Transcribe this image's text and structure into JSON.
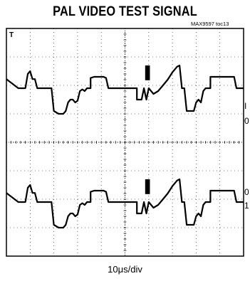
{
  "title": "PAL VIDEO TEST SIGNAL",
  "figure_id": "MAX9597 toc13",
  "trigger_marker": "T",
  "x_scale": "10μs/div",
  "side_labels": {
    "top_1": "I",
    "top_2": "0",
    "bottom_1": "0",
    "bottom_2": "1"
  },
  "chart_data": {
    "type": "line",
    "title": "PAL VIDEO TEST SIGNAL",
    "xlabel": "10μs/div",
    "ylabel": "",
    "grid": true,
    "x_divisions": 10,
    "y_divisions": 8,
    "time_per_div_us": 10,
    "series": [
      {
        "channel": 1,
        "points": [
          [
            0.0,
            -0.04
          ],
          [
            0.05,
            -0.2
          ],
          [
            0.08,
            -0.2
          ],
          [
            0.09,
            0.05
          ],
          [
            0.1,
            0.1
          ],
          [
            0.11,
            -0.04
          ],
          [
            0.12,
            -0.04
          ],
          [
            0.13,
            -0.2
          ],
          [
            0.19,
            -0.2
          ],
          [
            0.2,
            -0.6
          ],
          [
            0.22,
            -0.65
          ],
          [
            0.24,
            -0.65
          ],
          [
            0.25,
            -0.6
          ],
          [
            0.26,
            -0.45
          ],
          [
            0.27,
            -0.4
          ],
          [
            0.28,
            -0.4
          ],
          [
            0.29,
            -0.45
          ],
          [
            0.3,
            -0.42
          ],
          [
            0.31,
            -0.25
          ],
          [
            0.32,
            -0.22
          ],
          [
            0.33,
            -0.25
          ],
          [
            0.34,
            -0.2
          ],
          [
            0.355,
            -0.2
          ],
          [
            0.355,
            -0.02
          ],
          [
            0.37,
            0.0
          ],
          [
            0.41,
            0.0
          ],
          [
            0.42,
            -0.02
          ],
          [
            0.43,
            -0.2
          ],
          [
            0.55,
            -0.2
          ],
          [
            0.55,
            -0.4
          ],
          [
            0.57,
            -0.4
          ],
          [
            0.58,
            -0.2
          ],
          [
            0.59,
            -0.4
          ],
          [
            0.6,
            -0.2
          ],
          [
            0.62,
            -0.3
          ],
          [
            0.64,
            -0.25
          ],
          [
            0.66,
            -0.15
          ],
          [
            0.68,
            -0.05
          ],
          [
            0.7,
            0.08
          ],
          [
            0.72,
            0.18
          ],
          [
            0.73,
            0.2
          ],
          [
            0.74,
            -0.2
          ],
          [
            0.75,
            -0.2
          ],
          [
            0.76,
            -0.6
          ],
          [
            0.79,
            -0.6
          ],
          [
            0.8,
            -0.45
          ],
          [
            0.81,
            -0.4
          ],
          [
            0.82,
            -0.45
          ],
          [
            0.83,
            -0.25
          ],
          [
            0.84,
            -0.2
          ],
          [
            0.86,
            -0.2
          ],
          [
            0.86,
            0.0
          ],
          [
            0.96,
            0.0
          ],
          [
            0.97,
            -0.2
          ],
          [
            1.0,
            -0.2
          ]
        ]
      },
      {
        "channel": 2,
        "points": [
          [
            0.0,
            -0.04
          ],
          [
            0.05,
            -0.2
          ],
          [
            0.08,
            -0.2
          ],
          [
            0.09,
            0.05
          ],
          [
            0.1,
            0.1
          ],
          [
            0.11,
            -0.04
          ],
          [
            0.12,
            -0.04
          ],
          [
            0.13,
            -0.2
          ],
          [
            0.19,
            -0.2
          ],
          [
            0.2,
            -0.6
          ],
          [
            0.22,
            -0.65
          ],
          [
            0.24,
            -0.65
          ],
          [
            0.25,
            -0.6
          ],
          [
            0.26,
            -0.45
          ],
          [
            0.27,
            -0.4
          ],
          [
            0.28,
            -0.4
          ],
          [
            0.29,
            -0.45
          ],
          [
            0.3,
            -0.42
          ],
          [
            0.31,
            -0.25
          ],
          [
            0.32,
            -0.22
          ],
          [
            0.33,
            -0.25
          ],
          [
            0.34,
            -0.2
          ],
          [
            0.355,
            -0.2
          ],
          [
            0.355,
            -0.02
          ],
          [
            0.37,
            0.0
          ],
          [
            0.41,
            0.0
          ],
          [
            0.42,
            -0.02
          ],
          [
            0.43,
            -0.2
          ],
          [
            0.55,
            -0.2
          ],
          [
            0.55,
            -0.4
          ],
          [
            0.57,
            -0.4
          ],
          [
            0.58,
            -0.2
          ],
          [
            0.59,
            -0.4
          ],
          [
            0.6,
            -0.2
          ],
          [
            0.62,
            -0.3
          ],
          [
            0.64,
            -0.25
          ],
          [
            0.66,
            -0.15
          ],
          [
            0.68,
            -0.05
          ],
          [
            0.7,
            0.08
          ],
          [
            0.72,
            0.18
          ],
          [
            0.73,
            0.2
          ],
          [
            0.74,
            -0.2
          ],
          [
            0.75,
            -0.2
          ],
          [
            0.76,
            -0.6
          ],
          [
            0.79,
            -0.6
          ],
          [
            0.8,
            -0.45
          ],
          [
            0.81,
            -0.4
          ],
          [
            0.82,
            -0.45
          ],
          [
            0.83,
            -0.25
          ],
          [
            0.84,
            -0.2
          ],
          [
            0.86,
            -0.2
          ],
          [
            0.86,
            0.0
          ],
          [
            0.96,
            0.0
          ],
          [
            0.97,
            -0.2
          ],
          [
            1.0,
            -0.2
          ]
        ]
      }
    ]
  }
}
